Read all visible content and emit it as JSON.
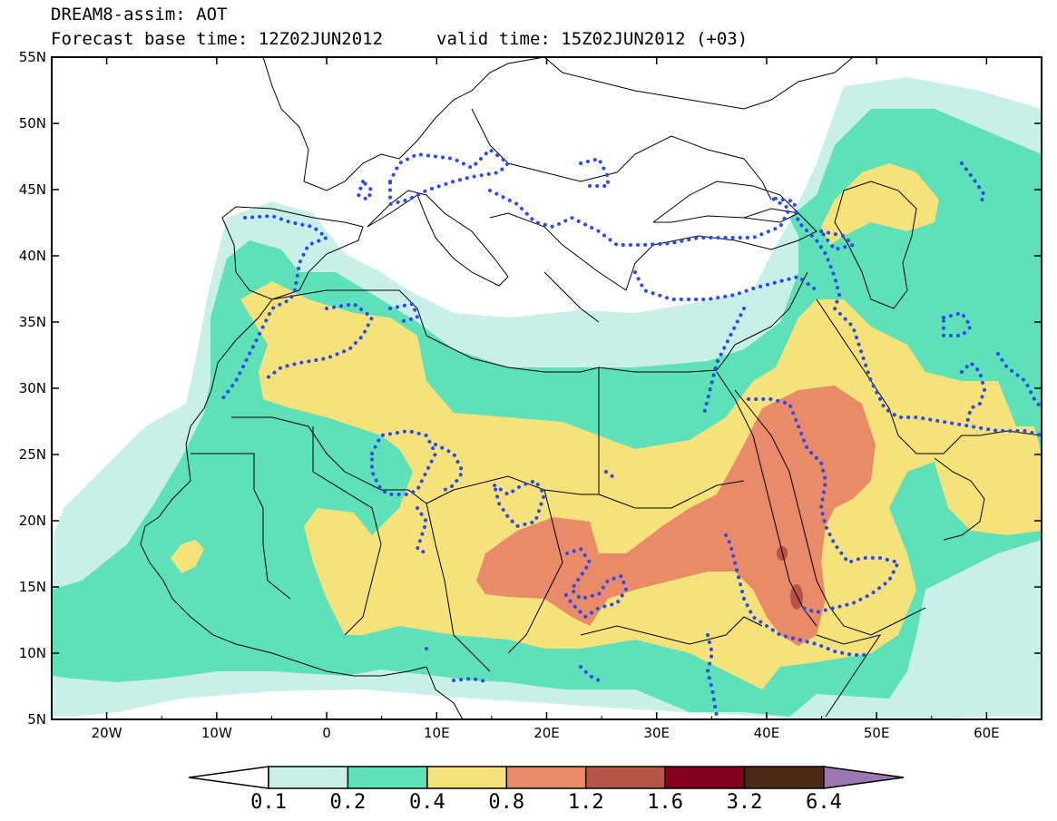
{
  "title": {
    "line1": "DREAM8-assim: AOT",
    "line2": "Forecast base time: 12Z02JUN2012",
    "valid": "valid time: 15Z02JUN2012 (+03)"
  },
  "map": {
    "lon_range": [
      -25,
      65
    ],
    "lat_range": [
      5,
      55
    ],
    "lat_ticks": [
      "55N",
      "50N",
      "45N",
      "40N",
      "35N",
      "30N",
      "25N",
      "20N",
      "15N",
      "10N",
      "5N"
    ],
    "lon_ticks": [
      "20W",
      "10W",
      "0",
      "10E",
      "20E",
      "30E",
      "40E",
      "50E",
      "60E"
    ]
  },
  "colorbar": {
    "labels": [
      "0.1",
      "0.2",
      "0.4",
      "0.8",
      "1.2",
      "1.6",
      "3.2",
      "6.4"
    ],
    "colors": [
      "#ffffff",
      "#c8f0e8",
      "#5ee0b8",
      "#f5e27a",
      "#e98a68",
      "#b45548",
      "#82001e",
      "#4a2a14",
      "#9b78b4"
    ]
  },
  "colors": {
    "aot_0_1": "#c8f0e8",
    "aot_0_2": "#5ee0b8",
    "aot_0_4": "#f5e27a",
    "aot_0_8": "#e98a68",
    "aot_1_2": "#b45548",
    "dotted_contour": "#2a4af0",
    "coastline": "#000000"
  }
}
